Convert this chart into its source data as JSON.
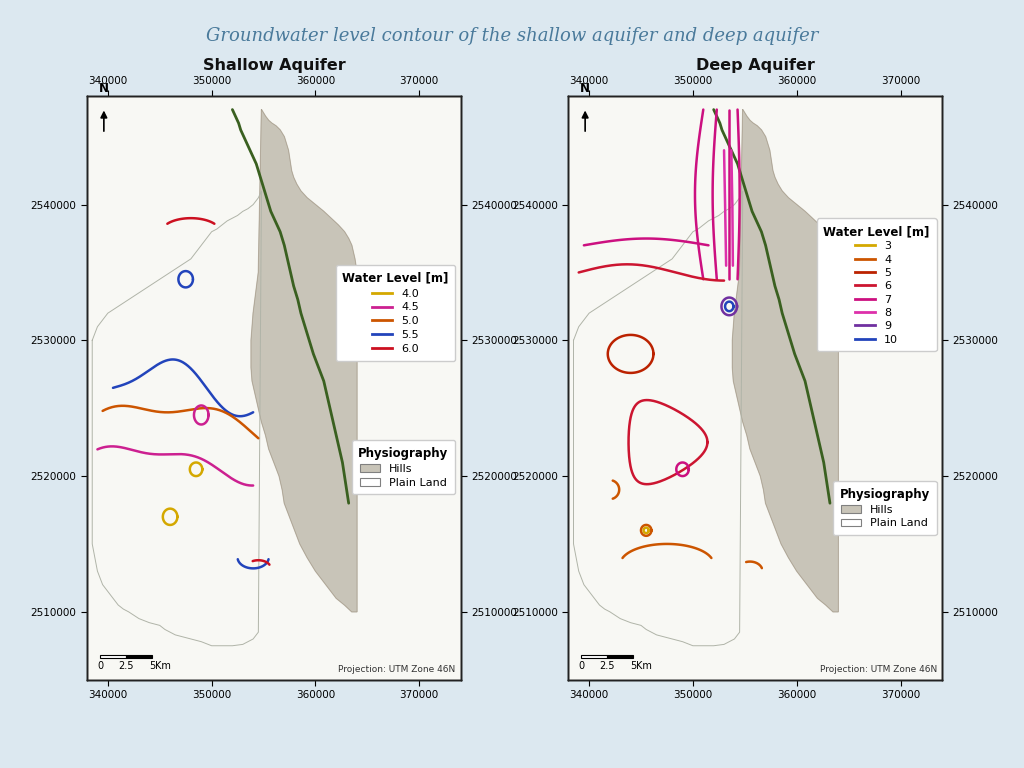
{
  "title": "Groundwater level contour of the shallow aquifer and deep aquifer",
  "title_color": "#4a7a9b",
  "title_fontsize": 13,
  "xlim": [
    338000,
    374000
  ],
  "ylim": [
    2505000,
    2548000
  ],
  "xticks": [
    340000,
    350000,
    360000,
    370000
  ],
  "yticks": [
    2510000,
    2520000,
    2530000,
    2540000
  ],
  "shallow_title": "Shallow Aquifer",
  "deep_title": "Deep Aquifer",
  "shallow_colors": {
    "4.0": "#d4a800",
    "4.5": "#cc2090",
    "5.0": "#cc5500",
    "5.5": "#2244bb",
    "6.0": "#cc1020"
  },
  "deep_colors": {
    "3": "#d4a800",
    "4": "#cc5500",
    "5": "#bb2200",
    "6": "#cc1530",
    "7": "#cc1080",
    "8": "#dd30aa",
    "9": "#7030a0",
    "10": "#2244bb"
  },
  "hills_color": "#c8c4b8",
  "hills_edge": "#aaa090",
  "plain_color": "#f8f8f4",
  "outer_bg": "#dce8f0",
  "background_color": "#ffffff",
  "frame_color": "#222222",
  "outer_label_color": "#222222",
  "green_line_color": "#3a6020",
  "plain_border_color": "#b0b4a8"
}
